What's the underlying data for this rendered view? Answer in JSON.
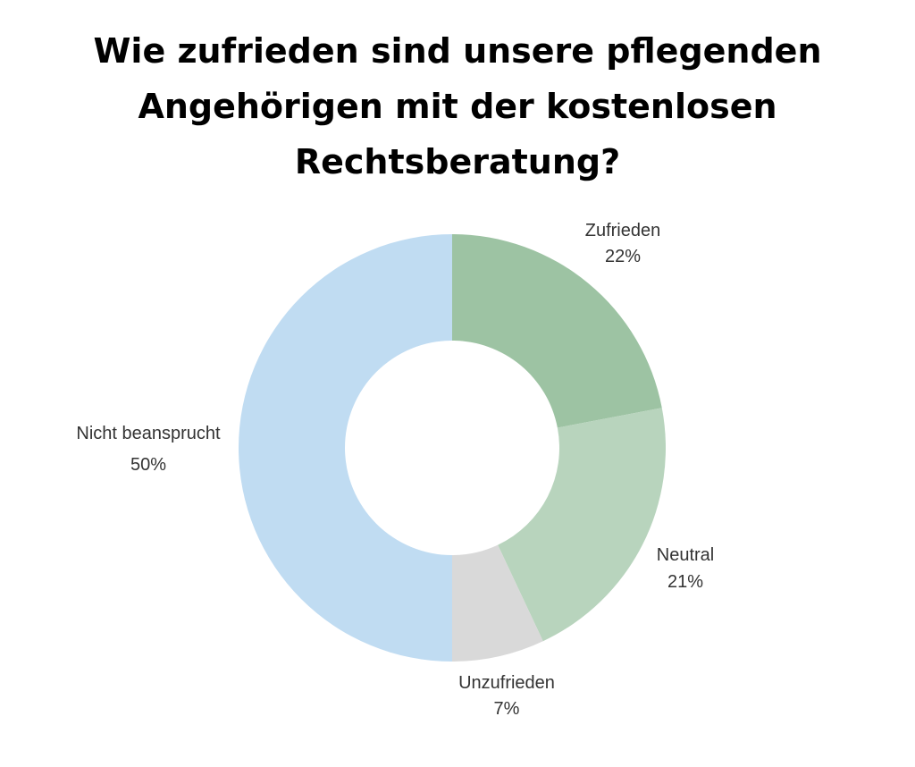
{
  "title_lines": [
    "Wie zufrieden sind unsere pflegenden",
    "Angehörigen mit der kostenlosen",
    "Rechtsberatung?"
  ],
  "chart_data": {
    "type": "pie",
    "variant": "donut",
    "title": "Wie zufrieden sind unsere pflegenden Angehörigen mit der kostenlosen Rechtsberatung?",
    "categories": [
      "Zufrieden",
      "Neutral",
      "Unzufrieden",
      "Nicht beansprucht"
    ],
    "values": [
      22,
      21,
      7,
      50
    ],
    "value_labels": [
      "22%",
      "21%",
      "7%",
      "50%"
    ],
    "colors": [
      "#9dc3a3",
      "#b8d4bd",
      "#d9d9d9",
      "#c0dcf2"
    ],
    "start_angle": "top (12 o'clock)",
    "direction": "clockwise",
    "legend": "none (labels placed next to slices)"
  }
}
